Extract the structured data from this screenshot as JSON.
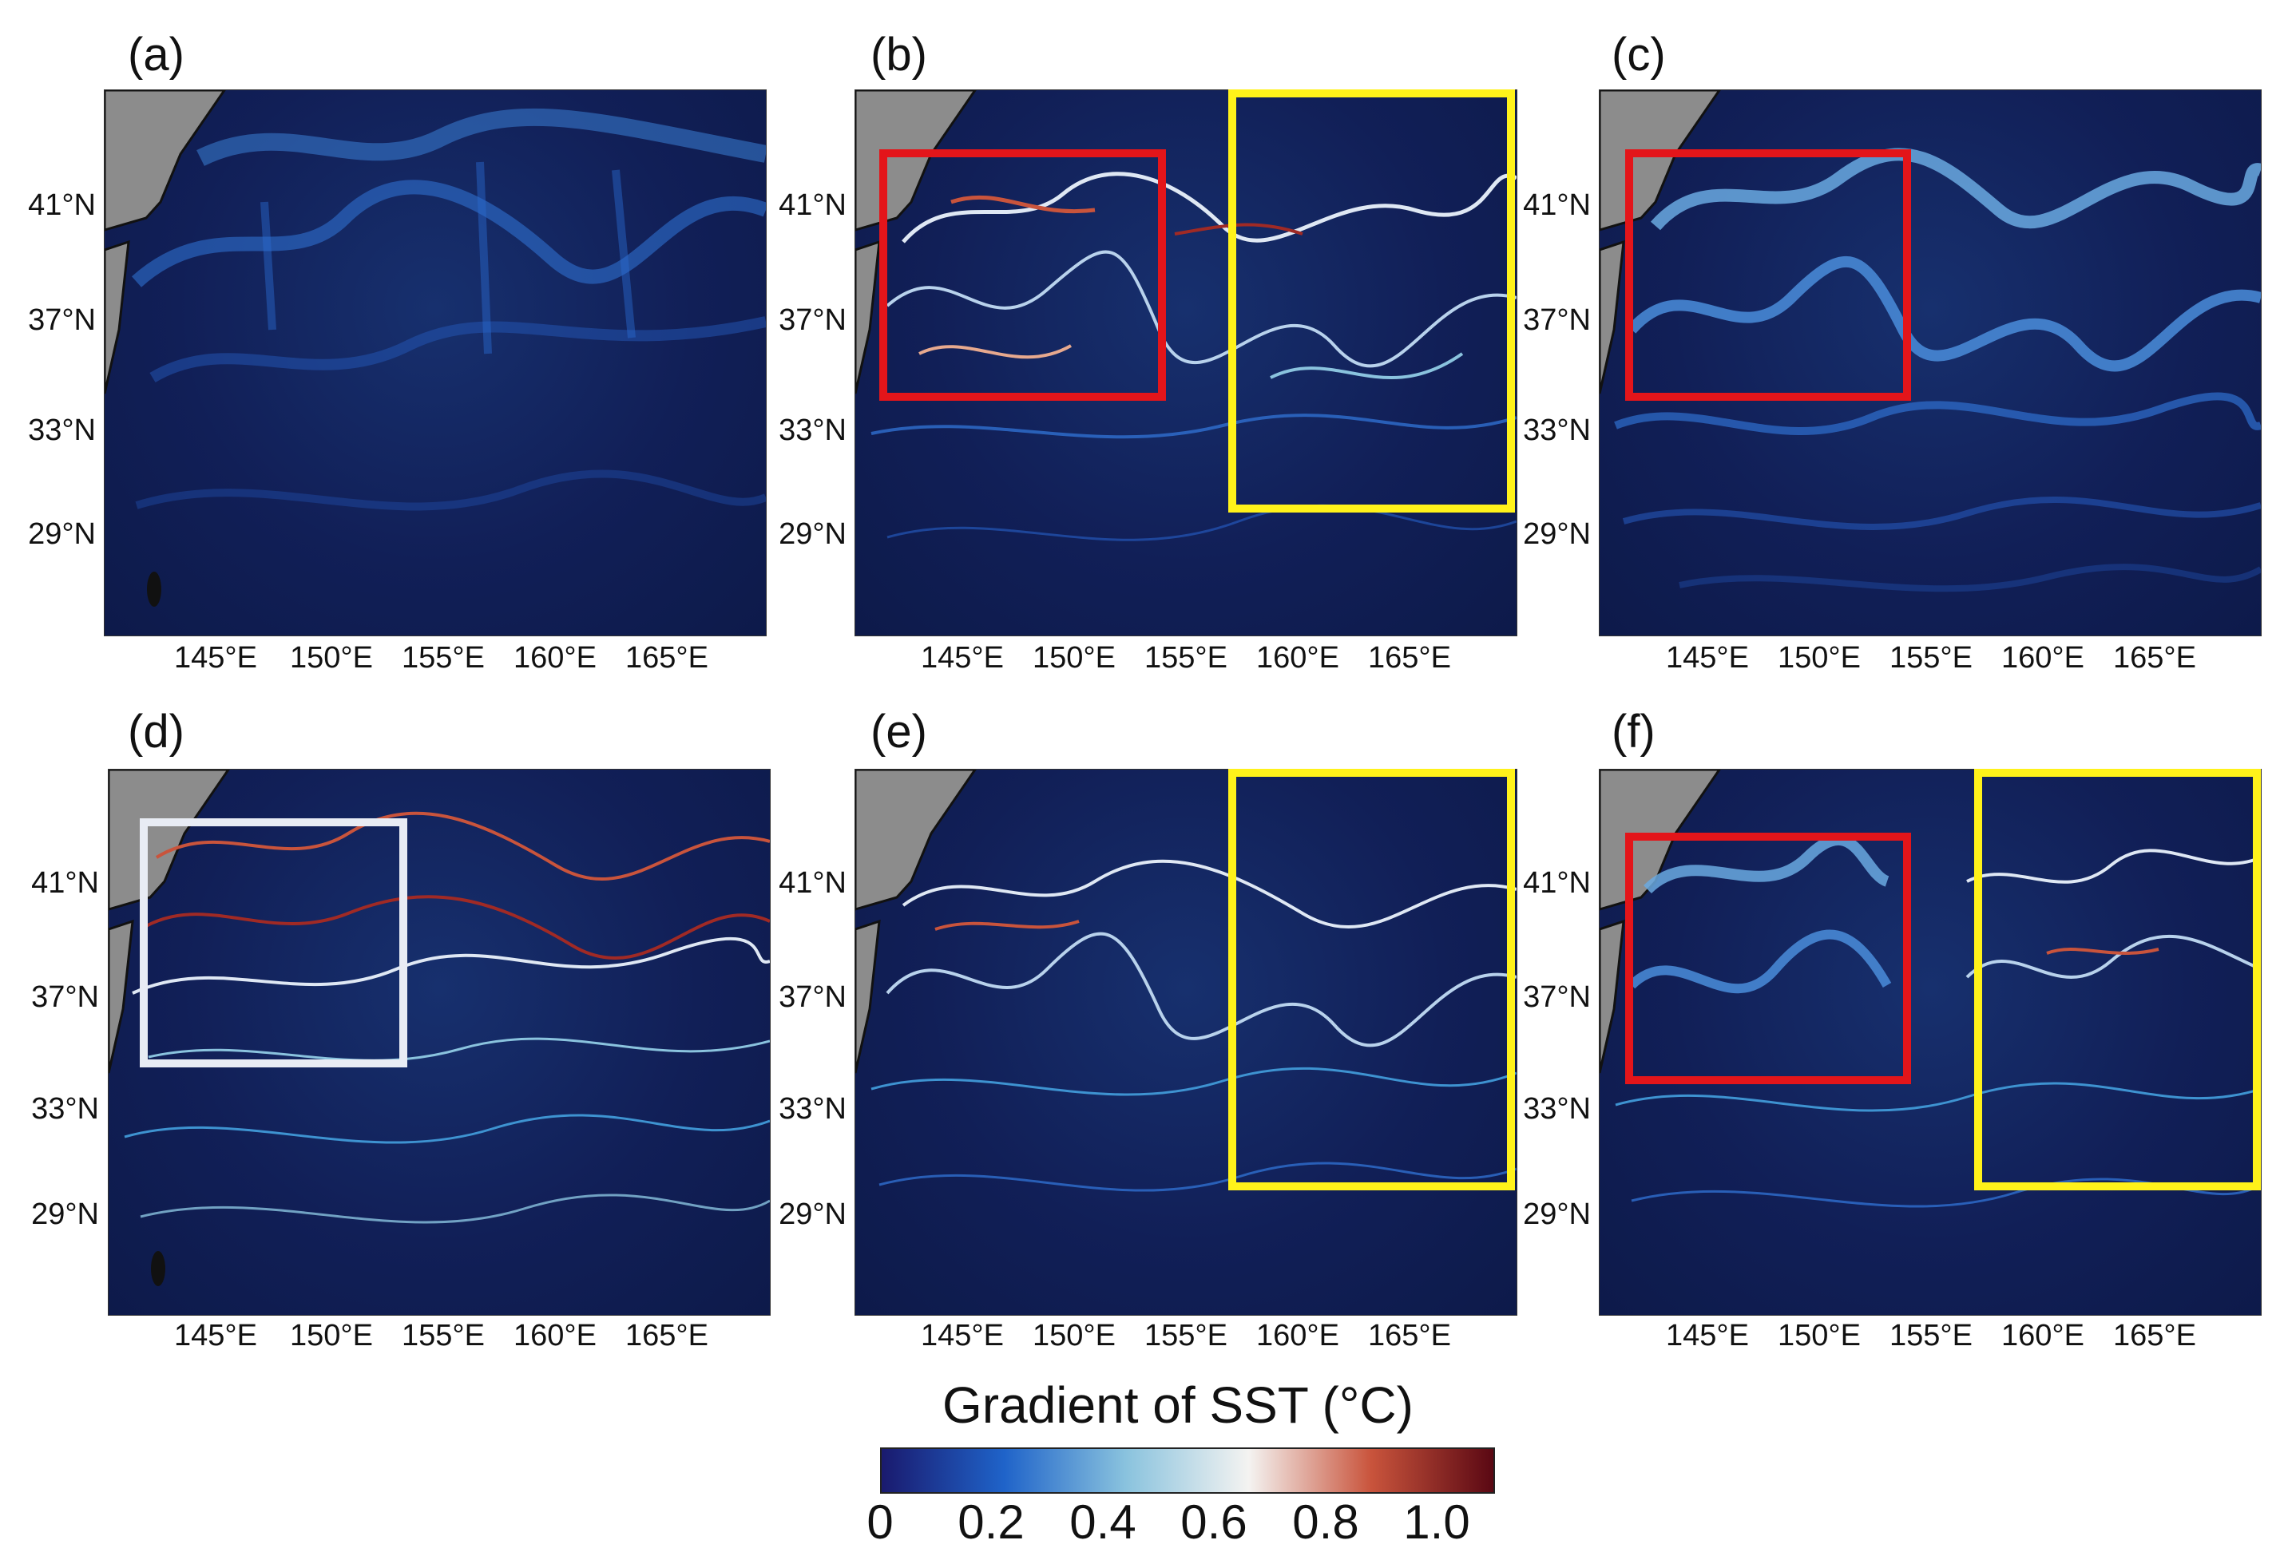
{
  "figure": {
    "panels": [
      {
        "id": "(a)"
      },
      {
        "id": "(b)"
      },
      {
        "id": "(c)"
      },
      {
        "id": "(d)"
      },
      {
        "id": "(e)"
      },
      {
        "id": "(f)"
      }
    ],
    "lat_labels": [
      "41°N",
      "37°N",
      "33°N",
      "29°N"
    ],
    "lon_labels": [
      "145°E",
      "150°E",
      "155°E",
      "160°E",
      "165°E"
    ],
    "box_colors": {
      "red": "#e3151a",
      "yellow": "#fff21a",
      "white": "#e8ecf4"
    },
    "colorbar": {
      "title": "Gradient of SST (°C)",
      "ticks": [
        "0",
        "0.2",
        "0.4",
        "0.6",
        "0.8",
        "1.0"
      ],
      "colors": [
        "#1a1a6e",
        "#1f63c9",
        "#8ac3de",
        "#f4f3f1",
        "#c9543c",
        "#5a0813"
      ]
    }
  }
}
